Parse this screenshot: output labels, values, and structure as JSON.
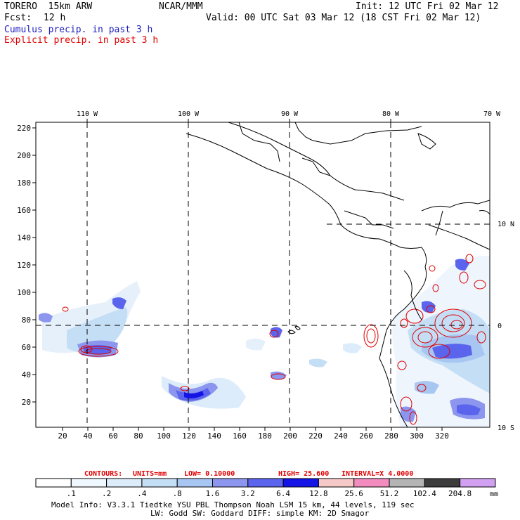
{
  "header": {
    "model": "TORERO  15km ARW",
    "org": "NCAR/MMM",
    "init": "Init: 12 UTC Fri 02 Mar 12",
    "fcst_label": "Fcst:",
    "fcst_value": "12 h",
    "valid": "Valid: 00 UTC Sat 03 Mar 12 (18 CST Fri 02 Mar 12)",
    "cumulus": "Cumulus precip. in past 3 h",
    "explicit": "Explicit precip. in past 3 h"
  },
  "map": {
    "lon_labels": [
      "110 W",
      "100 W",
      "90 W",
      "80 W",
      "70 W"
    ],
    "lat_labels": [
      "10 N",
      "0",
      "10 S"
    ],
    "x_ticks": [
      "20",
      "40",
      "60",
      "80",
      "100",
      "120",
      "140",
      "160",
      "180",
      "200",
      "220",
      "240",
      "260",
      "280",
      "300",
      "320"
    ],
    "y_ticks": [
      "20",
      "40",
      "60",
      "80",
      "100",
      "120",
      "140",
      "160",
      "180",
      "200",
      "220"
    ]
  },
  "contours": {
    "label": "CONTOURS:",
    "units": "UNITS=mm",
    "low": "LOW= 0.10000",
    "high": "HIGH=  25.600",
    "interval": "INTERVAL=X  4.0000"
  },
  "colorbar": {
    "unit": "mm",
    "labels": [
      ".1",
      ".2",
      ".4",
      ".8",
      "1.6",
      "3.2",
      "6.4",
      "12.8",
      "25.6",
      "51.2",
      "102.4",
      "204.8"
    ],
    "colors": [
      "#ffffff",
      "#f0f8ff",
      "#dcecfa",
      "#c4def6",
      "#a8c6f2",
      "#8c96ee",
      "#5a64ec",
      "#1414e6",
      "#f6c8c8",
      "#f28cbe",
      "#b4b4b4",
      "#3c3c3c",
      "#d2a0f0"
    ]
  },
  "footer": {
    "line1": "Model Info: V3.3.1   Tiedtke YSU PBL  Thompson    Noah LSM  15 km,   44 levels,  119 sec",
    "line2": "LW: Godd SW: Goddard DIFF: simple KM: 2D Smagor"
  }
}
